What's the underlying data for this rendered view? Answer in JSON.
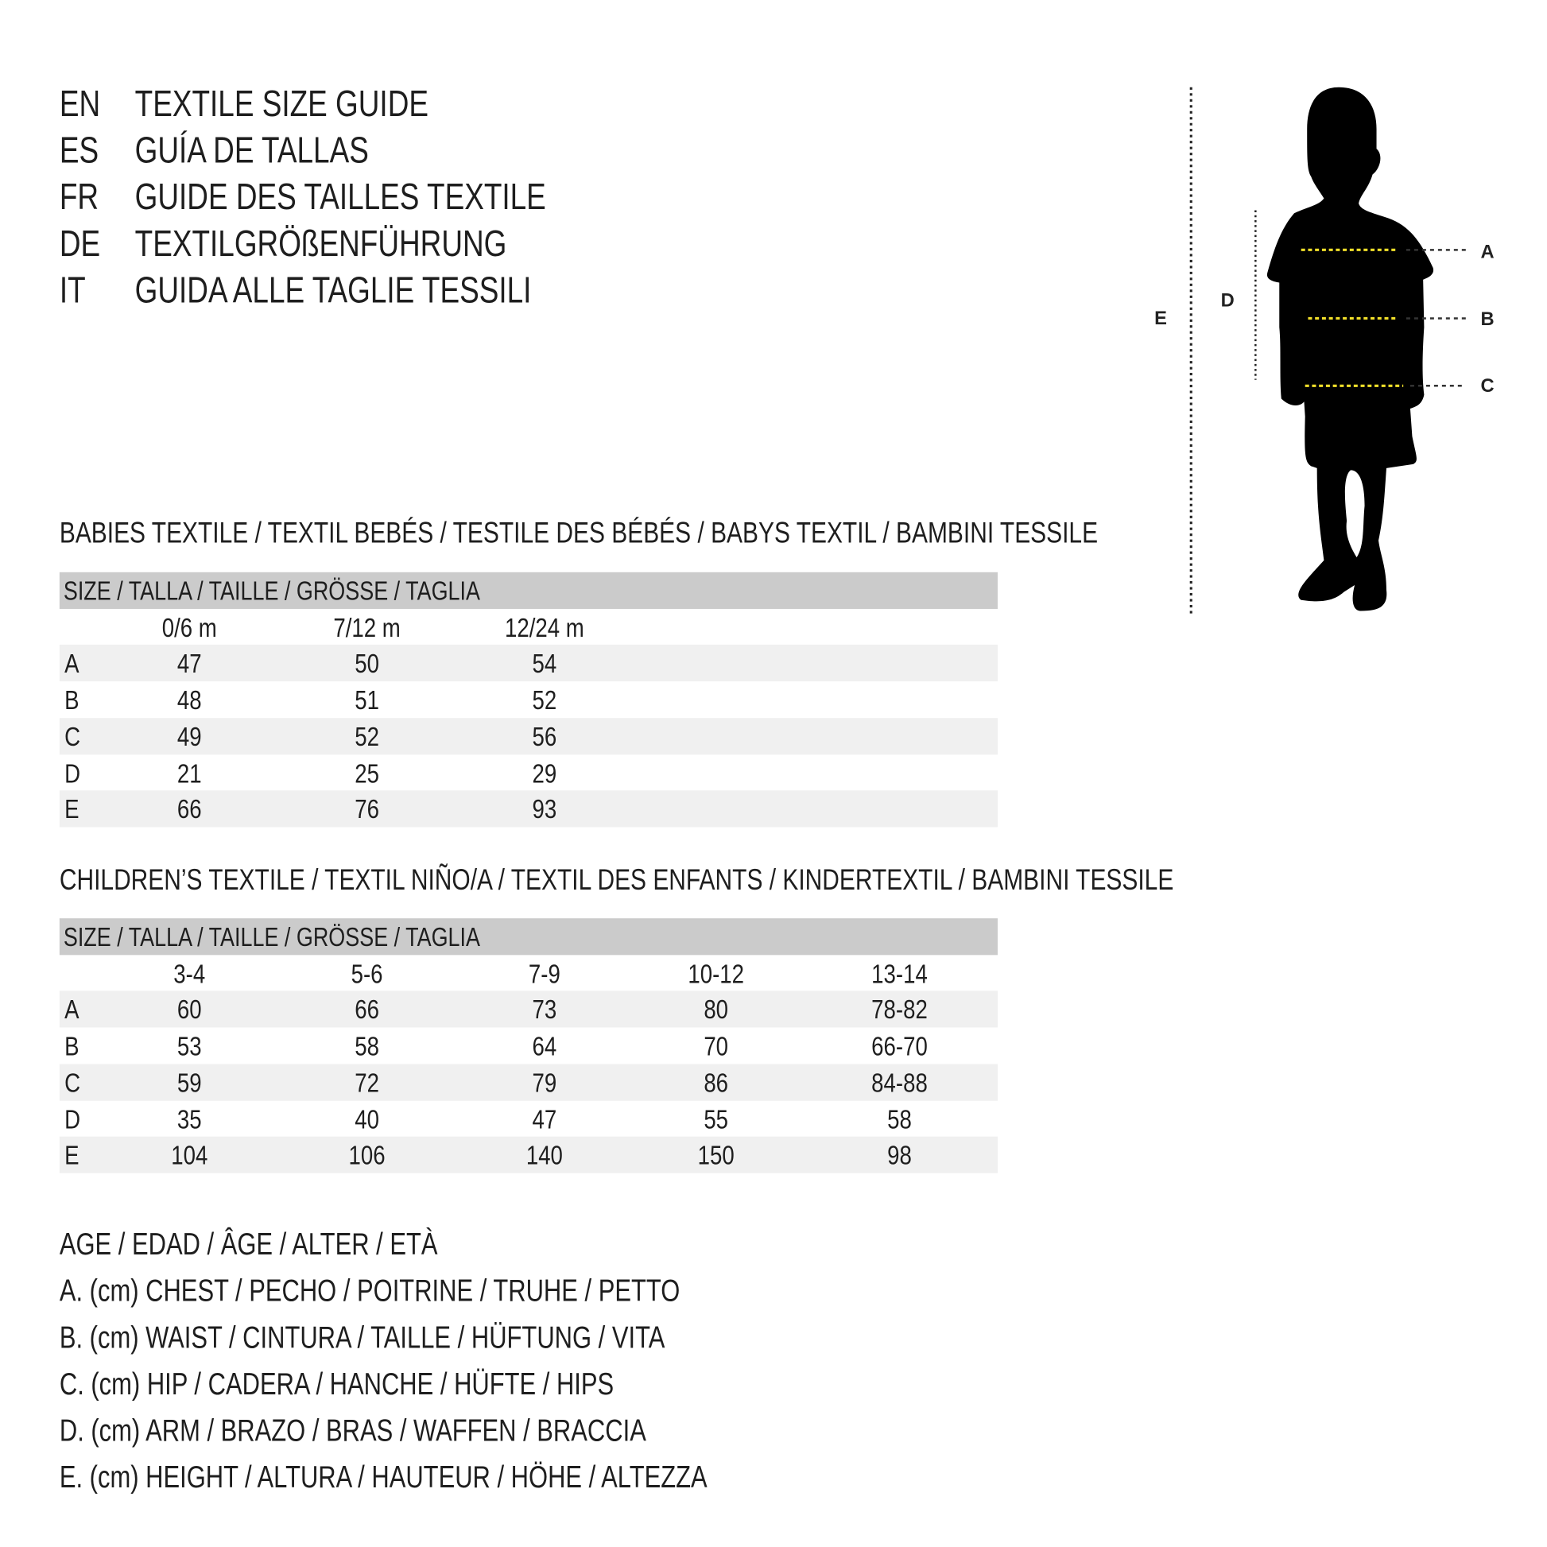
{
  "titles": [
    {
      "code": "EN",
      "text": "TEXTILE SIZE GUIDE"
    },
    {
      "code": "ES",
      "text": "GUÍA DE TALLAS"
    },
    {
      "code": "FR",
      "text": "GUIDE DES TAILLES TEXTILE"
    },
    {
      "code": "DE",
      "text": "TEXTILGRÖßENFÜHRUNG"
    },
    {
      "code": "IT",
      "text": "GUIDA ALLE TAGLIE TESSILI"
    }
  ],
  "figure": {
    "labels": {
      "A": "A",
      "B": "B",
      "C": "C",
      "D": "D",
      "E": "E"
    },
    "silhouette_color": "#000000",
    "measure_line_color": "#f2e02a"
  },
  "babies": {
    "heading": "BABIES TEXTILE / TEXTIL BEBÉS / TESTILE DES BÉBÉS / BABYS TEXTIL / BAMBINI TESSILE",
    "size_header": "SIZE / TALLA / TAILLE / GRÖSSE / TAGLIA",
    "columns": [
      "0/6 m",
      "7/12 m",
      "12/24 m"
    ],
    "rows": [
      {
        "label": "A",
        "values": [
          "47",
          "50",
          "54"
        ]
      },
      {
        "label": "B",
        "values": [
          "48",
          "51",
          "52"
        ]
      },
      {
        "label": "C",
        "values": [
          "49",
          "52",
          "56"
        ]
      },
      {
        "label": "D",
        "values": [
          "21",
          "25",
          "29"
        ]
      },
      {
        "label": "E",
        "values": [
          "66",
          "76",
          "93"
        ]
      }
    ]
  },
  "children": {
    "heading": "CHILDREN’S TEXTILE / TEXTIL NIÑO/A / TEXTIL DES ENFANTS / KINDERTEXTIL / BAMBINI TESSILE",
    "size_header": "SIZE / TALLA / TAILLE / GRÖSSE / TAGLIA",
    "columns": [
      "3-4",
      "5-6",
      "7-9",
      "10-12",
      "13-14"
    ],
    "rows": [
      {
        "label": "A",
        "values": [
          "60",
          "66",
          "73",
          "80",
          "78-82"
        ]
      },
      {
        "label": "B",
        "values": [
          "53",
          "58",
          "64",
          "70",
          "66-70"
        ]
      },
      {
        "label": "C",
        "values": [
          "59",
          "72",
          "79",
          "86",
          "84-88"
        ]
      },
      {
        "label": "D",
        "values": [
          "35",
          "40",
          "47",
          "55",
          "58"
        ]
      },
      {
        "label": "E",
        "values": [
          "104",
          "106",
          "140",
          "150",
          "98"
        ]
      }
    ]
  },
  "legend": [
    "AGE / EDAD / ÂGE / ALTER / ETÀ",
    "A. (cm) CHEST / PECHO / POITRINE / TRUHE / PETTO",
    "B. (cm) WAIST / CINTURA / TAILLE / HÜFTUNG / VITA",
    "C. (cm) HIP / CADERA / HANCHE / HÜFTE / HIPS",
    "D. (cm) ARM / BRAZO / BRAS / WAFFEN / BRACCIA",
    "E. (cm) HEIGHT / ALTURA / HAUTEUR / HÖHE / ALTEZZA"
  ]
}
